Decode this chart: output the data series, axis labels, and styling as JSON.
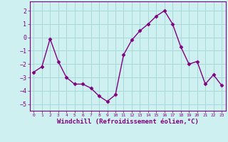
{
  "x": [
    0,
    1,
    2,
    3,
    4,
    5,
    6,
    7,
    8,
    9,
    10,
    11,
    12,
    13,
    14,
    15,
    16,
    17,
    18,
    19,
    20,
    21,
    22,
    23
  ],
  "y": [
    -2.6,
    -2.2,
    -0.1,
    -1.8,
    -3.0,
    -3.5,
    -3.5,
    -3.8,
    -4.4,
    -4.8,
    -4.3,
    -1.3,
    -0.2,
    0.5,
    1.0,
    1.6,
    2.0,
    1.0,
    -0.7,
    -2.0,
    -1.8,
    -3.5,
    -2.8,
    -3.6
  ],
  "line_color": "#800080",
  "marker": "D",
  "markersize": 2.5,
  "linewidth": 1.0,
  "bg_color": "#cff0f0",
  "grid_color": "#a8d8d8",
  "xlabel": "Windchill (Refroidissement éolien,°C)",
  "xlabel_fontsize": 6.5,
  "xlabel_color": "#800080",
  "tick_color": "#800080",
  "ylim": [
    -5.5,
    2.7
  ],
  "xlim": [
    -0.5,
    23.5
  ],
  "yticks": [
    -5,
    -4,
    -3,
    -2,
    -1,
    0,
    1,
    2
  ],
  "xtick_labels": [
    "0",
    "1",
    "2",
    "3",
    "4",
    "5",
    "6",
    "7",
    "8",
    "9",
    "10",
    "11",
    "12",
    "13",
    "14",
    "15",
    "16",
    "17",
    "18",
    "19",
    "20",
    "21",
    "22",
    "23"
  ]
}
